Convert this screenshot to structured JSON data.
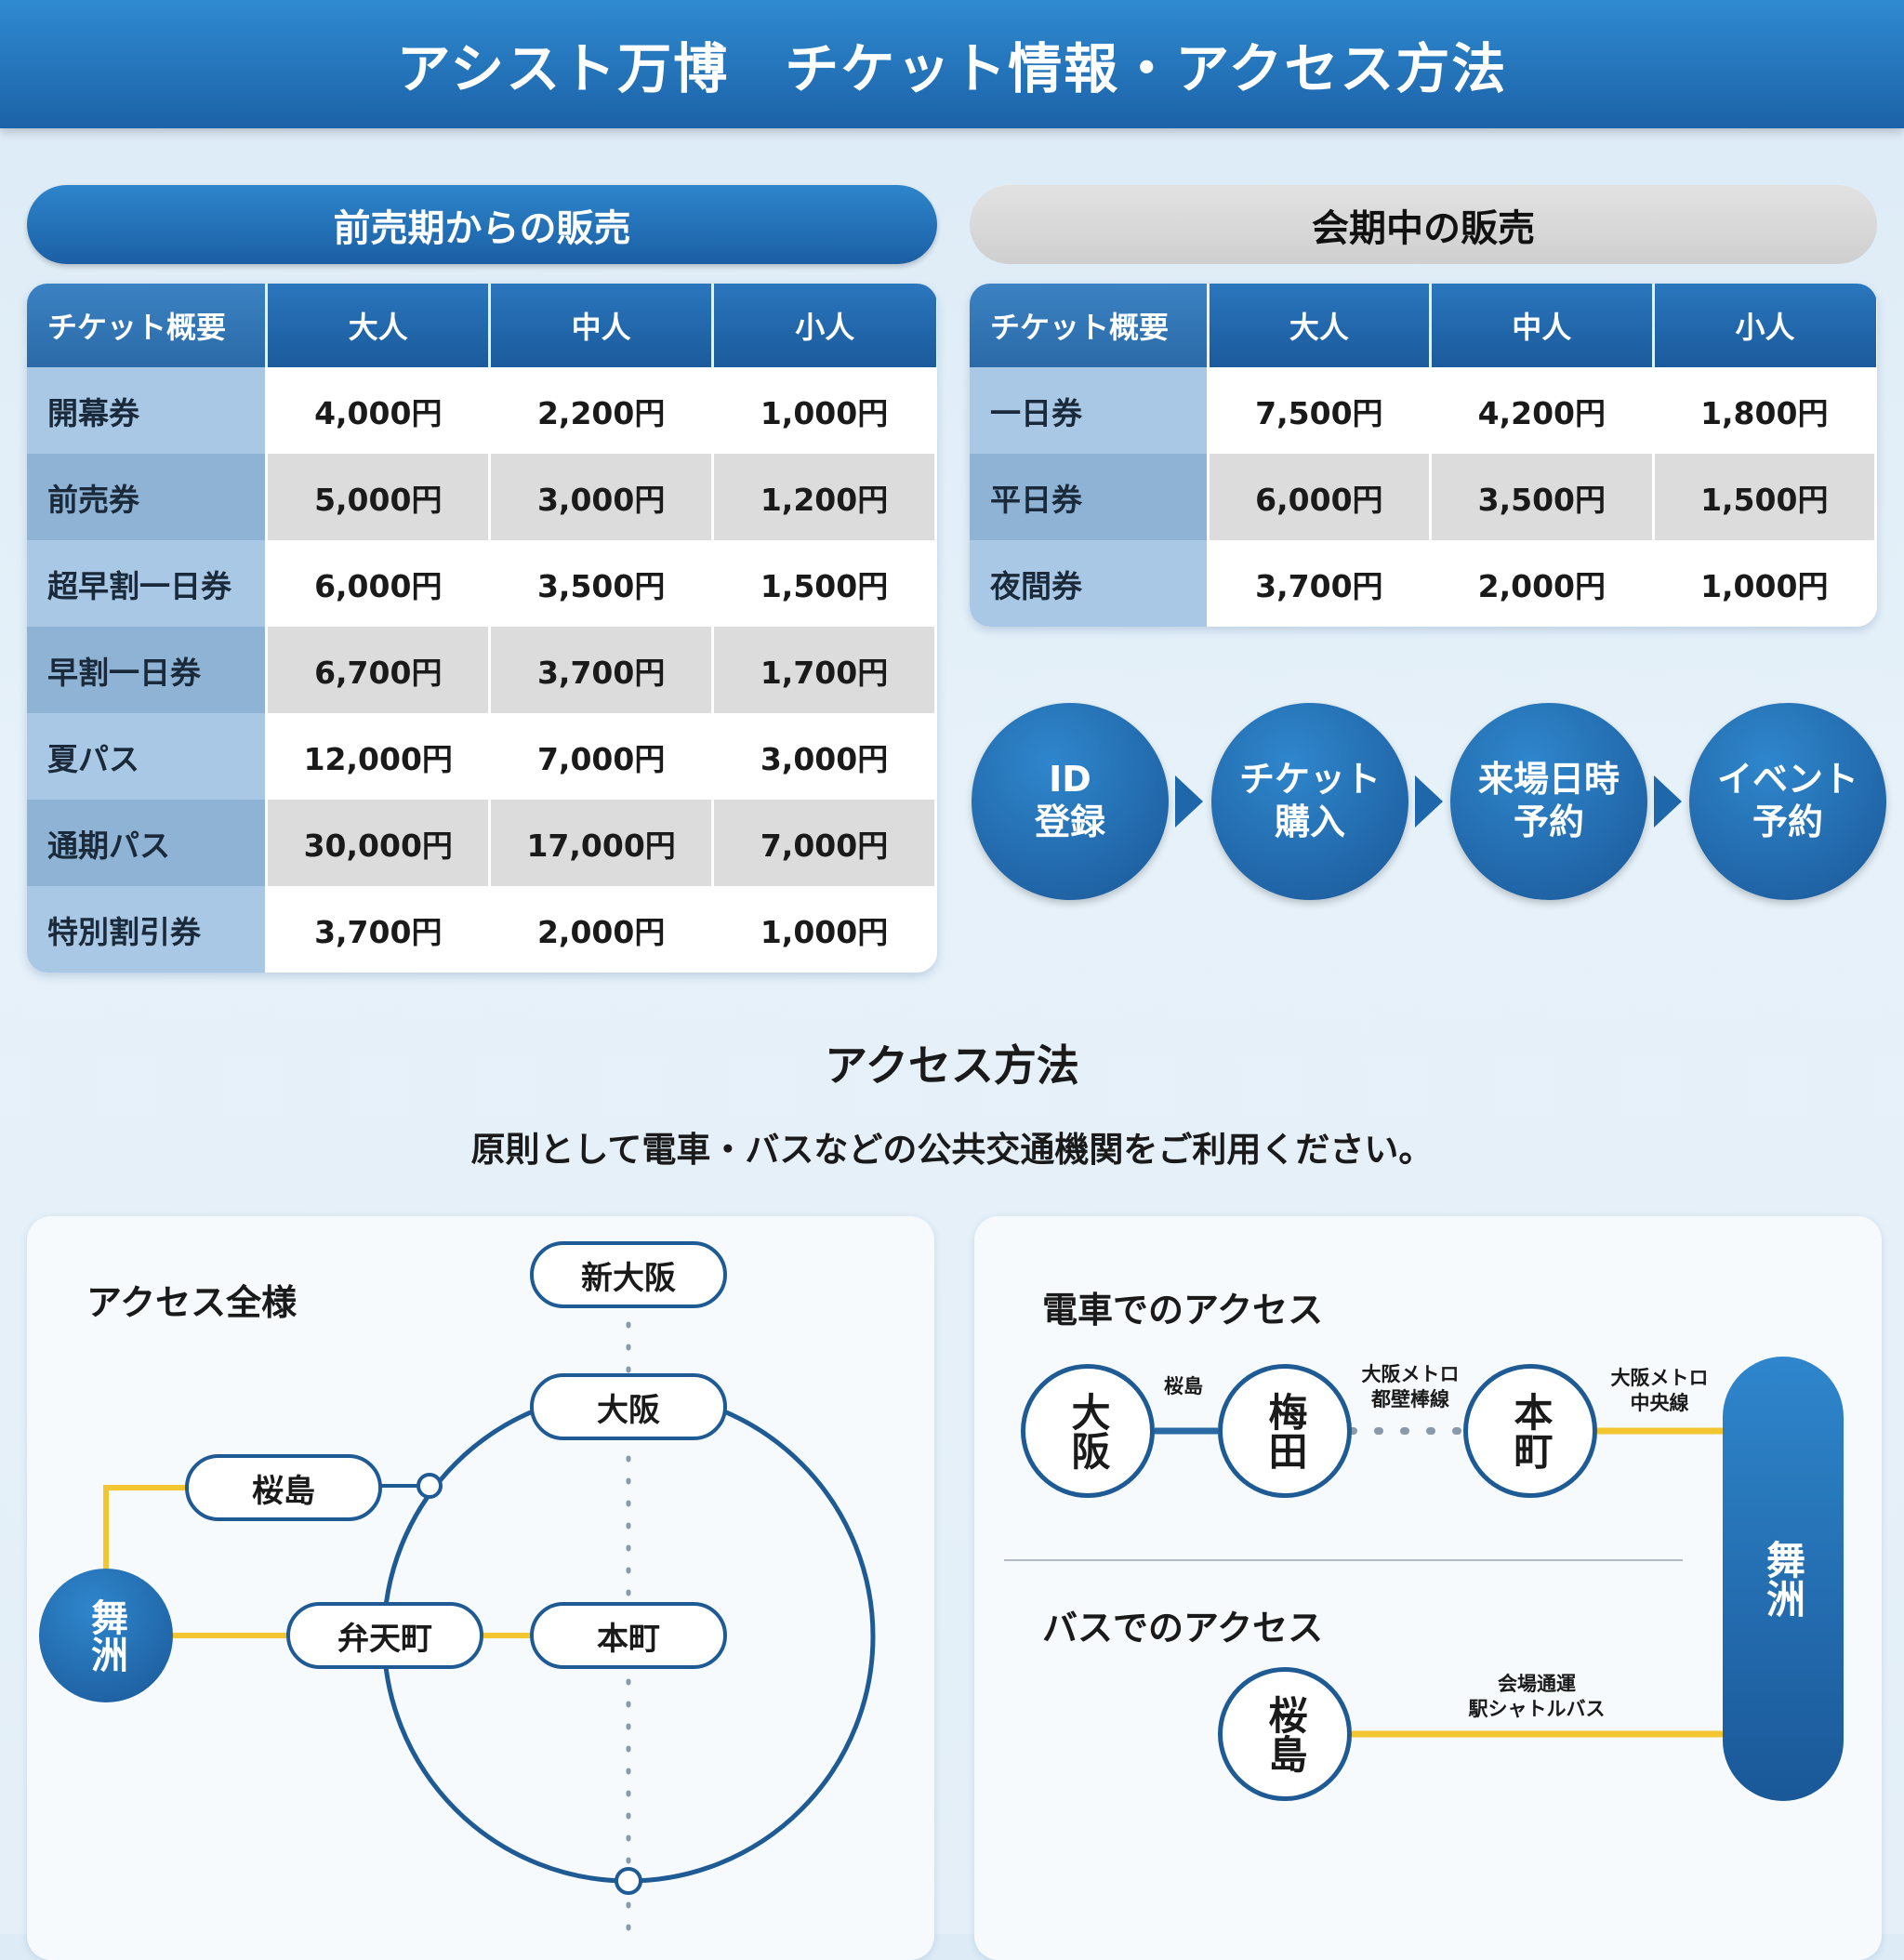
{
  "header": {
    "title": "アシスト万博　チケット情報・アクセス方法"
  },
  "presale": {
    "title": "前売期からの販売",
    "columns": [
      "チケット概要",
      "大人",
      "中人",
      "小人"
    ],
    "rows": [
      [
        "開幕券",
        "4,000円",
        "2,200円",
        "1,000円"
      ],
      [
        "前売券",
        "5,000円",
        "3,000円",
        "1,200円"
      ],
      [
        "超早割一日券",
        "6,000円",
        "3,500円",
        "1,500円"
      ],
      [
        "早割一日券",
        "6,700円",
        "3,700円",
        "1,700円"
      ],
      [
        "夏パス",
        "12,000円",
        "7,000円",
        "3,000円"
      ],
      [
        "通期パス",
        "30,000円",
        "17,000円",
        "7,000円"
      ],
      [
        "特別割引券",
        "3,700円",
        "2,000円",
        "1,000円"
      ]
    ]
  },
  "during": {
    "title": "会期中の販売",
    "columns": [
      "チケット概要",
      "大人",
      "中人",
      "小人"
    ],
    "rows": [
      [
        "一日券",
        "7,500円",
        "4,200円",
        "1,800円"
      ],
      [
        "平日券",
        "6,000円",
        "3,500円",
        "1,500円"
      ],
      [
        "夜間券",
        "3,700円",
        "2,000円",
        "1,000円"
      ]
    ]
  },
  "flow": [
    "ID\n登録",
    "チケット\n購入",
    "来場日時\n予約",
    "イベント\n予約"
  ],
  "access": {
    "title": "アクセス方法",
    "subtitle": "原則として電車・バスなどの公共交通機関をご利用ください。",
    "overview": {
      "title": "アクセス全様",
      "stations": {
        "shin_osaka": "新大阪",
        "osaka": "大阪",
        "sakurajima": "桜島",
        "bentencho": "弁天町",
        "honmachi": "本町",
        "maishima": "舞洲"
      }
    },
    "train": {
      "title": "電車でのアクセス",
      "stations": [
        "大阪",
        "梅田",
        "本町"
      ],
      "labels": [
        "桜島",
        "大阪メトロ\n都壁棒線",
        "大阪メトロ\n中央線"
      ],
      "destination": "舞洲"
    },
    "bus": {
      "title": "バスでのアクセス",
      "station": "桜島",
      "label": "会場通運\n駅シャトルバス"
    }
  },
  "colors": {
    "primary": "#1c62a8",
    "line_yellow": "#f2c531"
  }
}
